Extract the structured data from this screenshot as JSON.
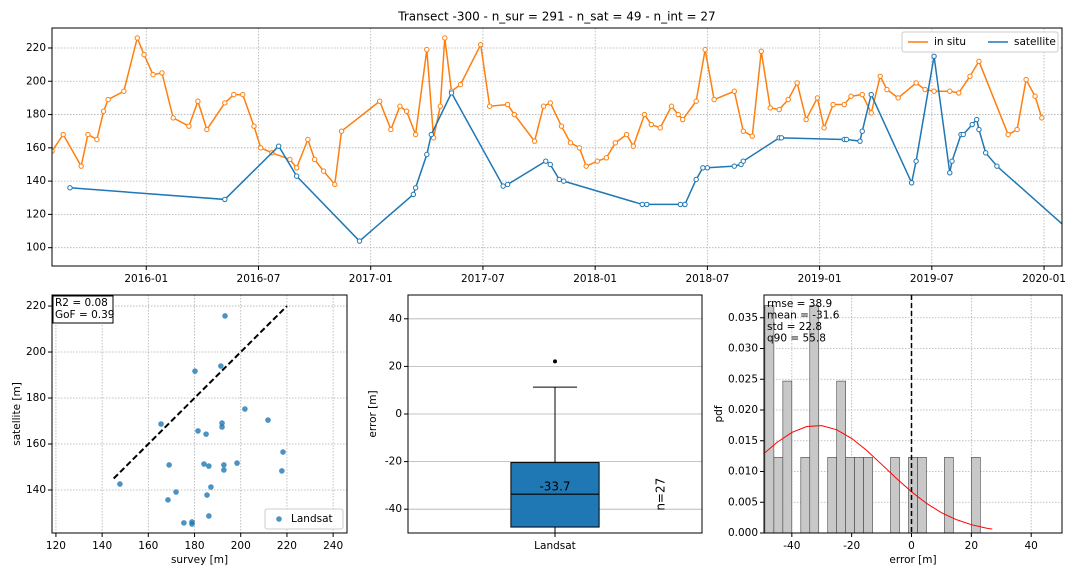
{
  "chart_data": [
    {
      "type": "line",
      "title": "Transect -300 - n_sur = 291 - n_sat = 49 - n_int = 27",
      "series": [
        {
          "name": "in situ",
          "color": "#ff7f0e",
          "x": [
            2015.58,
            2015.63,
            2015.71,
            2015.74,
            2015.78,
            2015.81,
            2015.83,
            2015.9,
            2015.96,
            2015.99,
            2016.03,
            2016.07,
            2016.12,
            2016.19,
            2016.23,
            2016.27,
            2016.35,
            2016.39,
            2016.43,
            2016.48,
            2016.51,
            2016.56,
            2016.64,
            2016.67,
            2016.72,
            2016.75,
            2016.79,
            2016.84,
            2016.87,
            2017.04,
            2017.09,
            2017.13,
            2017.16,
            2017.2,
            2017.25,
            2017.28,
            2017.31,
            2017.33,
            2017.36,
            2017.4,
            2017.49,
            2017.53,
            2017.61,
            2017.64,
            2017.73,
            2017.77,
            2017.8,
            2017.85,
            2017.89,
            2017.93,
            2017.96,
            2018.01,
            2018.05,
            2018.09,
            2018.14,
            2018.17,
            2018.22,
            2018.25,
            2018.29,
            2018.34,
            2018.37,
            2018.39,
            2018.45,
            2018.49,
            2018.53,
            2018.62,
            2018.66,
            2018.7,
            2018.74,
            2018.78,
            2018.82,
            2018.86,
            2018.9,
            2018.94,
            2018.99,
            2019.02,
            2019.06,
            2019.11,
            2019.14,
            2019.19,
            2019.23,
            2019.27,
            2019.3,
            2019.35,
            2019.43,
            2019.47,
            2019.51,
            2019.58,
            2019.62,
            2019.67,
            2019.71,
            2019.84,
            2019.88,
            2019.92,
            2019.96,
            2019.99
          ],
          "values": [
            158,
            168,
            149,
            168,
            165,
            182,
            189,
            194,
            226,
            216,
            204,
            205,
            178,
            173,
            188,
            171,
            187,
            192,
            192,
            173,
            160,
            157,
            153,
            148,
            165,
            153,
            146,
            138,
            170,
            188,
            171,
            185,
            182,
            168,
            219,
            166,
            185,
            226,
            194,
            198,
            222,
            185,
            186,
            180,
            164,
            185,
            187,
            173,
            163,
            160,
            149,
            152,
            154,
            163,
            168,
            161,
            180,
            174,
            172,
            185,
            180,
            177,
            188,
            219,
            189,
            194,
            170,
            167,
            218,
            184,
            183,
            189,
            199,
            177,
            190,
            172,
            186,
            186,
            191,
            192,
            181,
            203,
            195,
            190,
            199,
            195,
            194,
            194,
            193,
            203,
            212,
            168,
            171,
            201,
            191,
            178
          ]
        },
        {
          "name": "satellite",
          "color": "#1f77b4",
          "x": [
            2015.66,
            2016.35,
            2016.59,
            2016.67,
            2016.95,
            2017.19,
            2017.2,
            2017.25,
            2017.27,
            2017.36,
            2017.59,
            2017.61,
            2017.78,
            2017.8,
            2017.84,
            2017.86,
            2018.21,
            2018.23,
            2018.38,
            2018.4,
            2018.45,
            2018.48,
            2018.5,
            2018.62,
            2018.65,
            2018.66,
            2018.82,
            2018.83,
            2019.11,
            2019.12,
            2019.18,
            2019.19,
            2019.23,
            2019.41,
            2019.43,
            2019.51,
            2019.58,
            2019.59,
            2019.63,
            2019.64,
            2019.68,
            2019.7,
            2019.71,
            2019.74,
            2019.79,
            2020.2
          ],
          "values": [
            136,
            129,
            161,
            143,
            104,
            132,
            136,
            156,
            168,
            193,
            137,
            138,
            152,
            150,
            141,
            140,
            126,
            126,
            126,
            126,
            141,
            148,
            148,
            149,
            150,
            152,
            166,
            166,
            165,
            165,
            164,
            170,
            192,
            139,
            152,
            215,
            145,
            152,
            168,
            168,
            174,
            177,
            171,
            157,
            149,
            100
          ]
        }
      ],
      "xlim": [
        2015.58,
        2020.08
      ],
      "xticks": [
        {
          "value": 2016.0,
          "label": "2016-01"
        },
        {
          "value": 2016.5,
          "label": "2016-07"
        },
        {
          "value": 2017.0,
          "label": "2017-01"
        },
        {
          "value": 2017.5,
          "label": "2017-07"
        },
        {
          "value": 2018.0,
          "label": "2018-01"
        },
        {
          "value": 2018.5,
          "label": "2018-07"
        },
        {
          "value": 2019.0,
          "label": "2019-01"
        },
        {
          "value": 2019.5,
          "label": "2019-07"
        },
        {
          "value": 2020.0,
          "label": "2020-01"
        }
      ],
      "ylim": [
        89,
        232
      ],
      "yticks": [
        100,
        120,
        140,
        160,
        180,
        200,
        220
      ],
      "grid": "both",
      "legend": "upper right"
    },
    {
      "type": "scatter",
      "xlabel": "survey [m]",
      "ylabel": "satellite [m]",
      "series": [
        {
          "name": "Landsat",
          "color": "#1f77b4",
          "x": [
            147.7,
            165.5,
            169.0,
            168.5,
            172.0,
            175.4,
            178.9,
            178.9,
            180.2,
            181.5,
            184.1,
            185.0,
            185.4,
            186.2,
            186.2,
            187.1,
            191.4,
            191.9,
            191.9,
            192.7,
            192.7,
            193.2,
            198.4,
            201.8,
            211.8,
            218.3,
            217.8
          ],
          "values": [
            142.6,
            168.7,
            150.9,
            135.7,
            139.1,
            125.7,
            126.1,
            125.2,
            191.7,
            165.7,
            151.3,
            164.3,
            137.8,
            150.4,
            128.7,
            141.3,
            193.9,
            167.4,
            169.1,
            148.7,
            150.9,
            215.7,
            151.7,
            175.2,
            170.4,
            156.5,
            148.3
          ]
        }
      ],
      "reference_line": {
        "x": [
          145,
          220
        ],
        "values": [
          145,
          220
        ]
      },
      "annotation": [
        "R2 = 0.08",
        "GoF = 0.39"
      ],
      "xlim": [
        118.3,
        246
      ],
      "xticks": [
        120,
        140,
        160,
        180,
        200,
        220,
        240
      ],
      "ylim": [
        121.3,
        224.8
      ],
      "yticks": [
        140,
        160,
        180,
        200,
        220
      ],
      "grid": "both",
      "legend": "lower right"
    },
    {
      "type": "box",
      "ylabel": "error [m]",
      "categories": [
        "Landsat"
      ],
      "color": "#1f77b4",
      "boxes": [
        {
          "whisker_low": -52,
          "q1": -47.5,
          "median": -33.7,
          "q3": -20.4,
          "whisker_high": 11.3,
          "outliers": [
            22.1
          ]
        }
      ],
      "annotation": "n=27",
      "ylim": [
        -50,
        50
      ],
      "yticks": [
        -40,
        -20,
        0,
        20,
        40
      ],
      "grid": "y"
    },
    {
      "type": "histogram",
      "xlabel": "error [m]",
      "ylabel": "pdf",
      "color": "#c8c8c8",
      "bins": [
        -49,
        -46,
        -43,
        -40,
        -37,
        -34,
        -31,
        -28,
        -25,
        -22,
        -19,
        -16,
        -13,
        -10,
        -7,
        -4,
        -1,
        2,
        5,
        8,
        11,
        14,
        17,
        20,
        23
      ],
      "values": [
        0.037,
        0.0123,
        0.0247,
        0,
        0.0123,
        0.037,
        0,
        0.0123,
        0.0247,
        0.0123,
        0.0123,
        0.0123,
        0,
        0,
        0.0123,
        0,
        0.0123,
        0.0123,
        0,
        0,
        0.0123,
        0,
        0,
        0.0123
      ],
      "curve": {
        "color": "#ff0000",
        "x": [
          -50,
          -45,
          -40,
          -35,
          -30,
          -25,
          -20,
          -15,
          -10,
          -5,
          0,
          5,
          10,
          15,
          20,
          25,
          27
        ],
        "values": [
          0.01264,
          0.01472,
          0.01635,
          0.01731,
          0.01746,
          0.01678,
          0.01538,
          0.01343,
          0.01117,
          0.00886,
          0.0067,
          0.00482,
          0.00331,
          0.00217,
          0.00135,
          0.0008,
          0.00064
        ]
      },
      "vline": 0,
      "stats": [
        "rmse = 38.9",
        "mean = -31.6",
        "std = 22.8",
        "q90 = 55.8"
      ],
      "xlim": [
        -49.3,
        50.3
      ],
      "xticks": [
        -40,
        -20,
        0,
        20,
        40
      ],
      "ylim": [
        0,
        0.0387
      ],
      "yticks": [
        {
          "value": 0,
          "label": "0.000"
        },
        {
          "value": 0.005,
          "label": "0.005"
        },
        {
          "value": 0.01,
          "label": "0.010"
        },
        {
          "value": 0.015,
          "label": "0.015"
        },
        {
          "value": 0.02,
          "label": "0.020"
        },
        {
          "value": 0.025,
          "label": "0.025"
        },
        {
          "value": 0.03,
          "label": "0.030"
        },
        {
          "value": 0.035,
          "label": "0.035"
        }
      ],
      "grid": "both"
    }
  ]
}
